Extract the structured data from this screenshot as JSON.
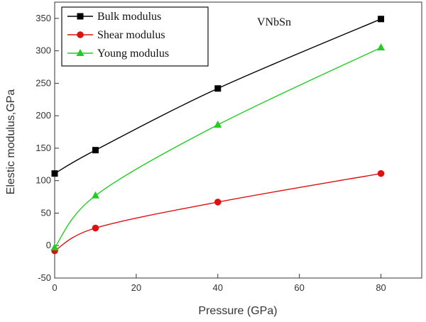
{
  "chart_data": {
    "type": "line",
    "annotation": "VNbSn",
    "xlabel": "Pressure (GPa)",
    "ylabel": "Elestic modulus,GPa",
    "xlim": [
      0,
      90
    ],
    "ylim": [
      -50,
      375
    ],
    "xticks": [
      0,
      20,
      40,
      60,
      80
    ],
    "yticks": [
      -50,
      0,
      50,
      100,
      150,
      200,
      250,
      300,
      350
    ],
    "legend_position": "top-left",
    "grid": false,
    "series": [
      {
        "name": "Bulk modulus",
        "color": "#000000",
        "marker": "square",
        "x": [
          0,
          10,
          40,
          80
        ],
        "values": [
          111,
          147,
          242,
          349
        ]
      },
      {
        "name": "Shear modulus",
        "color": "#dd1111",
        "marker": "circle",
        "x": [
          0,
          10,
          40,
          80
        ],
        "values": [
          -8,
          27,
          67,
          111
        ]
      },
      {
        "name": "Young modulus",
        "color": "#22cc22",
        "marker": "triangle",
        "x": [
          0,
          10,
          40,
          80
        ],
        "values": [
          -3,
          77,
          186,
          305
        ]
      }
    ]
  }
}
